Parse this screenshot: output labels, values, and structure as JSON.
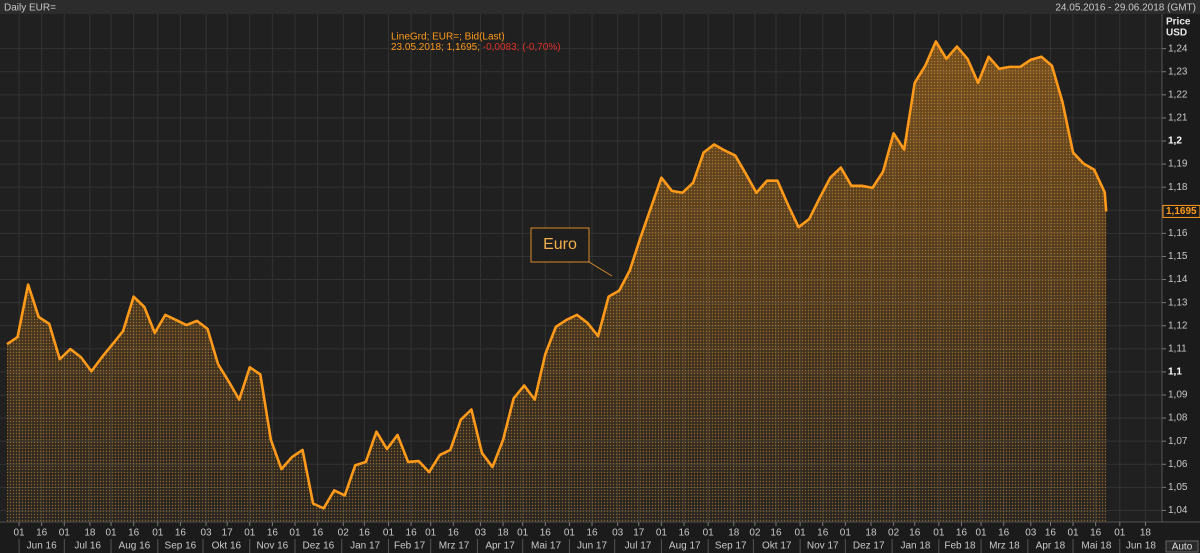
{
  "chart_data": {
    "type": "line",
    "title": "Daily EUR=",
    "range": "24.05.2016 - 29.06.2018 (GMT)",
    "ylabel": "Price",
    "yunit": "USD",
    "readout": {
      "text": "23.05.2018; 1,1695;",
      "change": "-0,0083; (-0,70%)"
    },
    "annotation": "Euro",
    "last_label": {
      "value": 1.1695,
      "label": "1,1695"
    },
    "grid": true,
    "xlim": [
      "2016-05-24",
      "2018-06-29"
    ],
    "ylim": [
      1.035,
      1.255
    ],
    "yticks": [
      {
        "value": 1.04,
        "label": "1,04"
      },
      {
        "value": 1.05,
        "label": "1,05"
      },
      {
        "value": 1.06,
        "label": "1,06"
      },
      {
        "value": 1.07,
        "label": "1,07"
      },
      {
        "value": 1.08,
        "label": "1,08"
      },
      {
        "value": 1.09,
        "label": "1,09"
      },
      {
        "value": 1.1,
        "label": "1,1"
      },
      {
        "value": 1.11,
        "label": "1,11"
      },
      {
        "value": 1.12,
        "label": "1,12"
      },
      {
        "value": 1.13,
        "label": "1,13"
      },
      {
        "value": 1.14,
        "label": "1,14"
      },
      {
        "value": 1.15,
        "label": "1,15"
      },
      {
        "value": 1.16,
        "label": "1,16"
      },
      {
        "value": 1.17,
        "label": "1,17"
      },
      {
        "value": 1.18,
        "label": "1,18"
      },
      {
        "value": 1.19,
        "label": "1,19"
      },
      {
        "value": 1.2,
        "label": "1,2"
      },
      {
        "value": 1.21,
        "label": "1,21"
      },
      {
        "value": 1.22,
        "label": "1,22"
      },
      {
        "value": 1.23,
        "label": "1,23"
      },
      {
        "value": 1.24,
        "label": "1,24"
      }
    ],
    "xticks": [
      {
        "value": "2016-06-01",
        "label": "01"
      },
      {
        "value": "2016-06-16",
        "label": "16"
      },
      {
        "value": "2016-07-01",
        "label": "01"
      },
      {
        "value": "2016-07-18",
        "label": "18"
      },
      {
        "value": "2016-08-01",
        "label": "01"
      },
      {
        "value": "2016-08-16",
        "label": "16"
      },
      {
        "value": "2016-09-01",
        "label": "01"
      },
      {
        "value": "2016-09-16",
        "label": "16"
      },
      {
        "value": "2016-10-03",
        "label": "03"
      },
      {
        "value": "2016-10-17",
        "label": "17"
      },
      {
        "value": "2016-11-01",
        "label": "01"
      },
      {
        "value": "2016-11-16",
        "label": "16"
      },
      {
        "value": "2016-12-01",
        "label": "01"
      },
      {
        "value": "2016-12-16",
        "label": "16"
      },
      {
        "value": "2017-01-02",
        "label": "02"
      },
      {
        "value": "2017-01-16",
        "label": "16"
      },
      {
        "value": "2017-02-01",
        "label": "01"
      },
      {
        "value": "2017-02-16",
        "label": "16"
      },
      {
        "value": "2017-03-01",
        "label": "01"
      },
      {
        "value": "2017-03-16",
        "label": "16"
      },
      {
        "value": "2017-04-03",
        "label": "03"
      },
      {
        "value": "2017-04-18",
        "label": "18"
      },
      {
        "value": "2017-05-01",
        "label": "01"
      },
      {
        "value": "2017-05-16",
        "label": "16"
      },
      {
        "value": "2017-06-01",
        "label": "01"
      },
      {
        "value": "2017-06-16",
        "label": "16"
      },
      {
        "value": "2017-07-03",
        "label": "03"
      },
      {
        "value": "2017-07-17",
        "label": "17"
      },
      {
        "value": "2017-08-01",
        "label": "01"
      },
      {
        "value": "2017-08-16",
        "label": "16"
      },
      {
        "value": "2017-09-01",
        "label": "01"
      },
      {
        "value": "2017-09-18",
        "label": "18"
      },
      {
        "value": "2017-10-02",
        "label": "02"
      },
      {
        "value": "2017-10-16",
        "label": "16"
      },
      {
        "value": "2017-11-01",
        "label": "01"
      },
      {
        "value": "2017-11-16",
        "label": "16"
      },
      {
        "value": "2017-12-01",
        "label": "01"
      },
      {
        "value": "2017-12-18",
        "label": "18"
      },
      {
        "value": "2018-01-02",
        "label": "02"
      },
      {
        "value": "2018-01-16",
        "label": "16"
      },
      {
        "value": "2018-02-01",
        "label": "01"
      },
      {
        "value": "2018-02-16",
        "label": "16"
      },
      {
        "value": "2018-03-01",
        "label": "01"
      },
      {
        "value": "2018-03-16",
        "label": "16"
      },
      {
        "value": "2018-04-03",
        "label": "03"
      },
      {
        "value": "2018-04-16",
        "label": "16"
      },
      {
        "value": "2018-05-01",
        "label": "01"
      },
      {
        "value": "2018-05-16",
        "label": "16"
      },
      {
        "value": "2018-06-01",
        "label": "01"
      },
      {
        "value": "2018-06-18",
        "label": "18"
      }
    ],
    "xmonths": [
      {
        "value": "2016-06",
        "label": "Jun 16"
      },
      {
        "value": "2016-07",
        "label": "Jul 16"
      },
      {
        "value": "2016-08",
        "label": "Aug 16"
      },
      {
        "value": "2016-09",
        "label": "Sep 16"
      },
      {
        "value": "2016-10",
        "label": "Okt 16"
      },
      {
        "value": "2016-11",
        "label": "Nov 16"
      },
      {
        "value": "2016-12",
        "label": "Dez 16"
      },
      {
        "value": "2017-01",
        "label": "Jan 17"
      },
      {
        "value": "2017-02",
        "label": "Feb 17"
      },
      {
        "value": "2017-03",
        "label": "Mrz 17"
      },
      {
        "value": "2017-04",
        "label": "Apr 17"
      },
      {
        "value": "2017-05",
        "label": "Mai 17"
      },
      {
        "value": "2017-06",
        "label": "Jun 17"
      },
      {
        "value": "2017-07",
        "label": "Jul 17"
      },
      {
        "value": "2017-08",
        "label": "Aug 17"
      },
      {
        "value": "2017-09",
        "label": "Sep 17"
      },
      {
        "value": "2017-10",
        "label": "Okt 17"
      },
      {
        "value": "2017-11",
        "label": "Nov 17"
      },
      {
        "value": "2017-12",
        "label": "Dez 17"
      },
      {
        "value": "2018-01",
        "label": "Jan 18"
      },
      {
        "value": "2018-02",
        "label": "Feb 18"
      },
      {
        "value": "2018-03",
        "label": "Mrz 18"
      },
      {
        "value": "2018-04",
        "label": "Apr 18"
      },
      {
        "value": "2018-05",
        "label": "Mai 18"
      },
      {
        "value": "2018-06",
        "label": "Jun 18"
      }
    ],
    "x": [
      "2016-05-24",
      "2016-05-31",
      "2016-06-07",
      "2016-06-14",
      "2016-06-21",
      "2016-06-28",
      "2016-07-05",
      "2016-07-12",
      "2016-07-19",
      "2016-07-26",
      "2016-08-02",
      "2016-08-09",
      "2016-08-16",
      "2016-08-23",
      "2016-08-30",
      "2016-09-06",
      "2016-09-13",
      "2016-09-20",
      "2016-09-27",
      "2016-10-04",
      "2016-10-11",
      "2016-10-18",
      "2016-10-25",
      "2016-11-01",
      "2016-11-08",
      "2016-11-15",
      "2016-11-22",
      "2016-11-29",
      "2016-12-06",
      "2016-12-13",
      "2016-12-20",
      "2016-12-27",
      "2017-01-03",
      "2017-01-10",
      "2017-01-17",
      "2017-01-24",
      "2017-01-31",
      "2017-02-07",
      "2017-02-14",
      "2017-02-21",
      "2017-02-28",
      "2017-03-07",
      "2017-03-14",
      "2017-03-21",
      "2017-03-28",
      "2017-04-04",
      "2017-04-11",
      "2017-04-18",
      "2017-04-25",
      "2017-05-02",
      "2017-05-09",
      "2017-05-16",
      "2017-05-23",
      "2017-05-30",
      "2017-06-06",
      "2017-06-13",
      "2017-06-20",
      "2017-06-27",
      "2017-07-04",
      "2017-07-11",
      "2017-07-18",
      "2017-07-25",
      "2017-08-01",
      "2017-08-08",
      "2017-08-15",
      "2017-08-22",
      "2017-08-29",
      "2017-09-05",
      "2017-09-12",
      "2017-09-19",
      "2017-09-26",
      "2017-10-03",
      "2017-10-10",
      "2017-10-17",
      "2017-10-24",
      "2017-10-31",
      "2017-11-07",
      "2017-11-14",
      "2017-11-21",
      "2017-11-28",
      "2017-12-05",
      "2017-12-12",
      "2017-12-19",
      "2017-12-26",
      "2018-01-02",
      "2018-01-09",
      "2018-01-16",
      "2018-01-23",
      "2018-01-30",
      "2018-02-06",
      "2018-02-13",
      "2018-02-20",
      "2018-02-27",
      "2018-03-06",
      "2018-03-13",
      "2018-03-20",
      "2018-03-27",
      "2018-04-03",
      "2018-04-10",
      "2018-04-17",
      "2018-04-24",
      "2018-05-01",
      "2018-05-08",
      "2018-05-15",
      "2018-05-22",
      "2018-05-23"
    ],
    "series": [
      {
        "name": "LineGrd; EUR=; Bid(Last)",
        "color": "#ff9a1a",
        "values": [
          1.112,
          1.1151,
          1.1378,
          1.1238,
          1.1208,
          1.1055,
          1.1099,
          1.1064,
          1.1003,
          1.1064,
          1.112,
          1.1177,
          1.1326,
          1.1282,
          1.1169,
          1.1247,
          1.1225,
          1.1203,
          1.1221,
          1.1186,
          1.1033,
          1.0959,
          1.088,
          1.102,
          1.0989,
          1.0706,
          1.0579,
          1.0631,
          1.0662,
          1.043,
          1.0409,
          1.0487,
          1.0465,
          1.0596,
          1.061,
          1.0741,
          1.0666,
          1.0727,
          1.061,
          1.0614,
          1.0566,
          1.064,
          1.0662,
          1.0793,
          1.0837,
          1.0649,
          1.0588,
          1.0706,
          1.0885,
          1.0941,
          1.088,
          1.1077,
          1.1195,
          1.1225,
          1.1247,
          1.1212,
          1.1155,
          1.1326,
          1.1352,
          1.1439,
          1.1579,
          1.171,
          1.1841,
          1.1784,
          1.1776,
          1.1819,
          1.195,
          1.1985,
          1.1959,
          1.1937,
          1.1858,
          1.1776,
          1.1828,
          1.1828,
          1.1723,
          1.1627,
          1.1662,
          1.1754,
          1.1841,
          1.1885,
          1.1806,
          1.1806,
          1.1797,
          1.1867,
          1.2033,
          1.1963,
          1.2252,
          1.2326,
          1.2431,
          1.2356,
          1.2409,
          1.2356,
          1.2252,
          1.2365,
          1.2313,
          1.2321,
          1.2321,
          1.2352,
          1.2365,
          1.2326,
          1.2169,
          1.195,
          1.1902,
          1.1876,
          1.1778,
          1.1695
        ]
      }
    ]
  },
  "button": "Auto"
}
